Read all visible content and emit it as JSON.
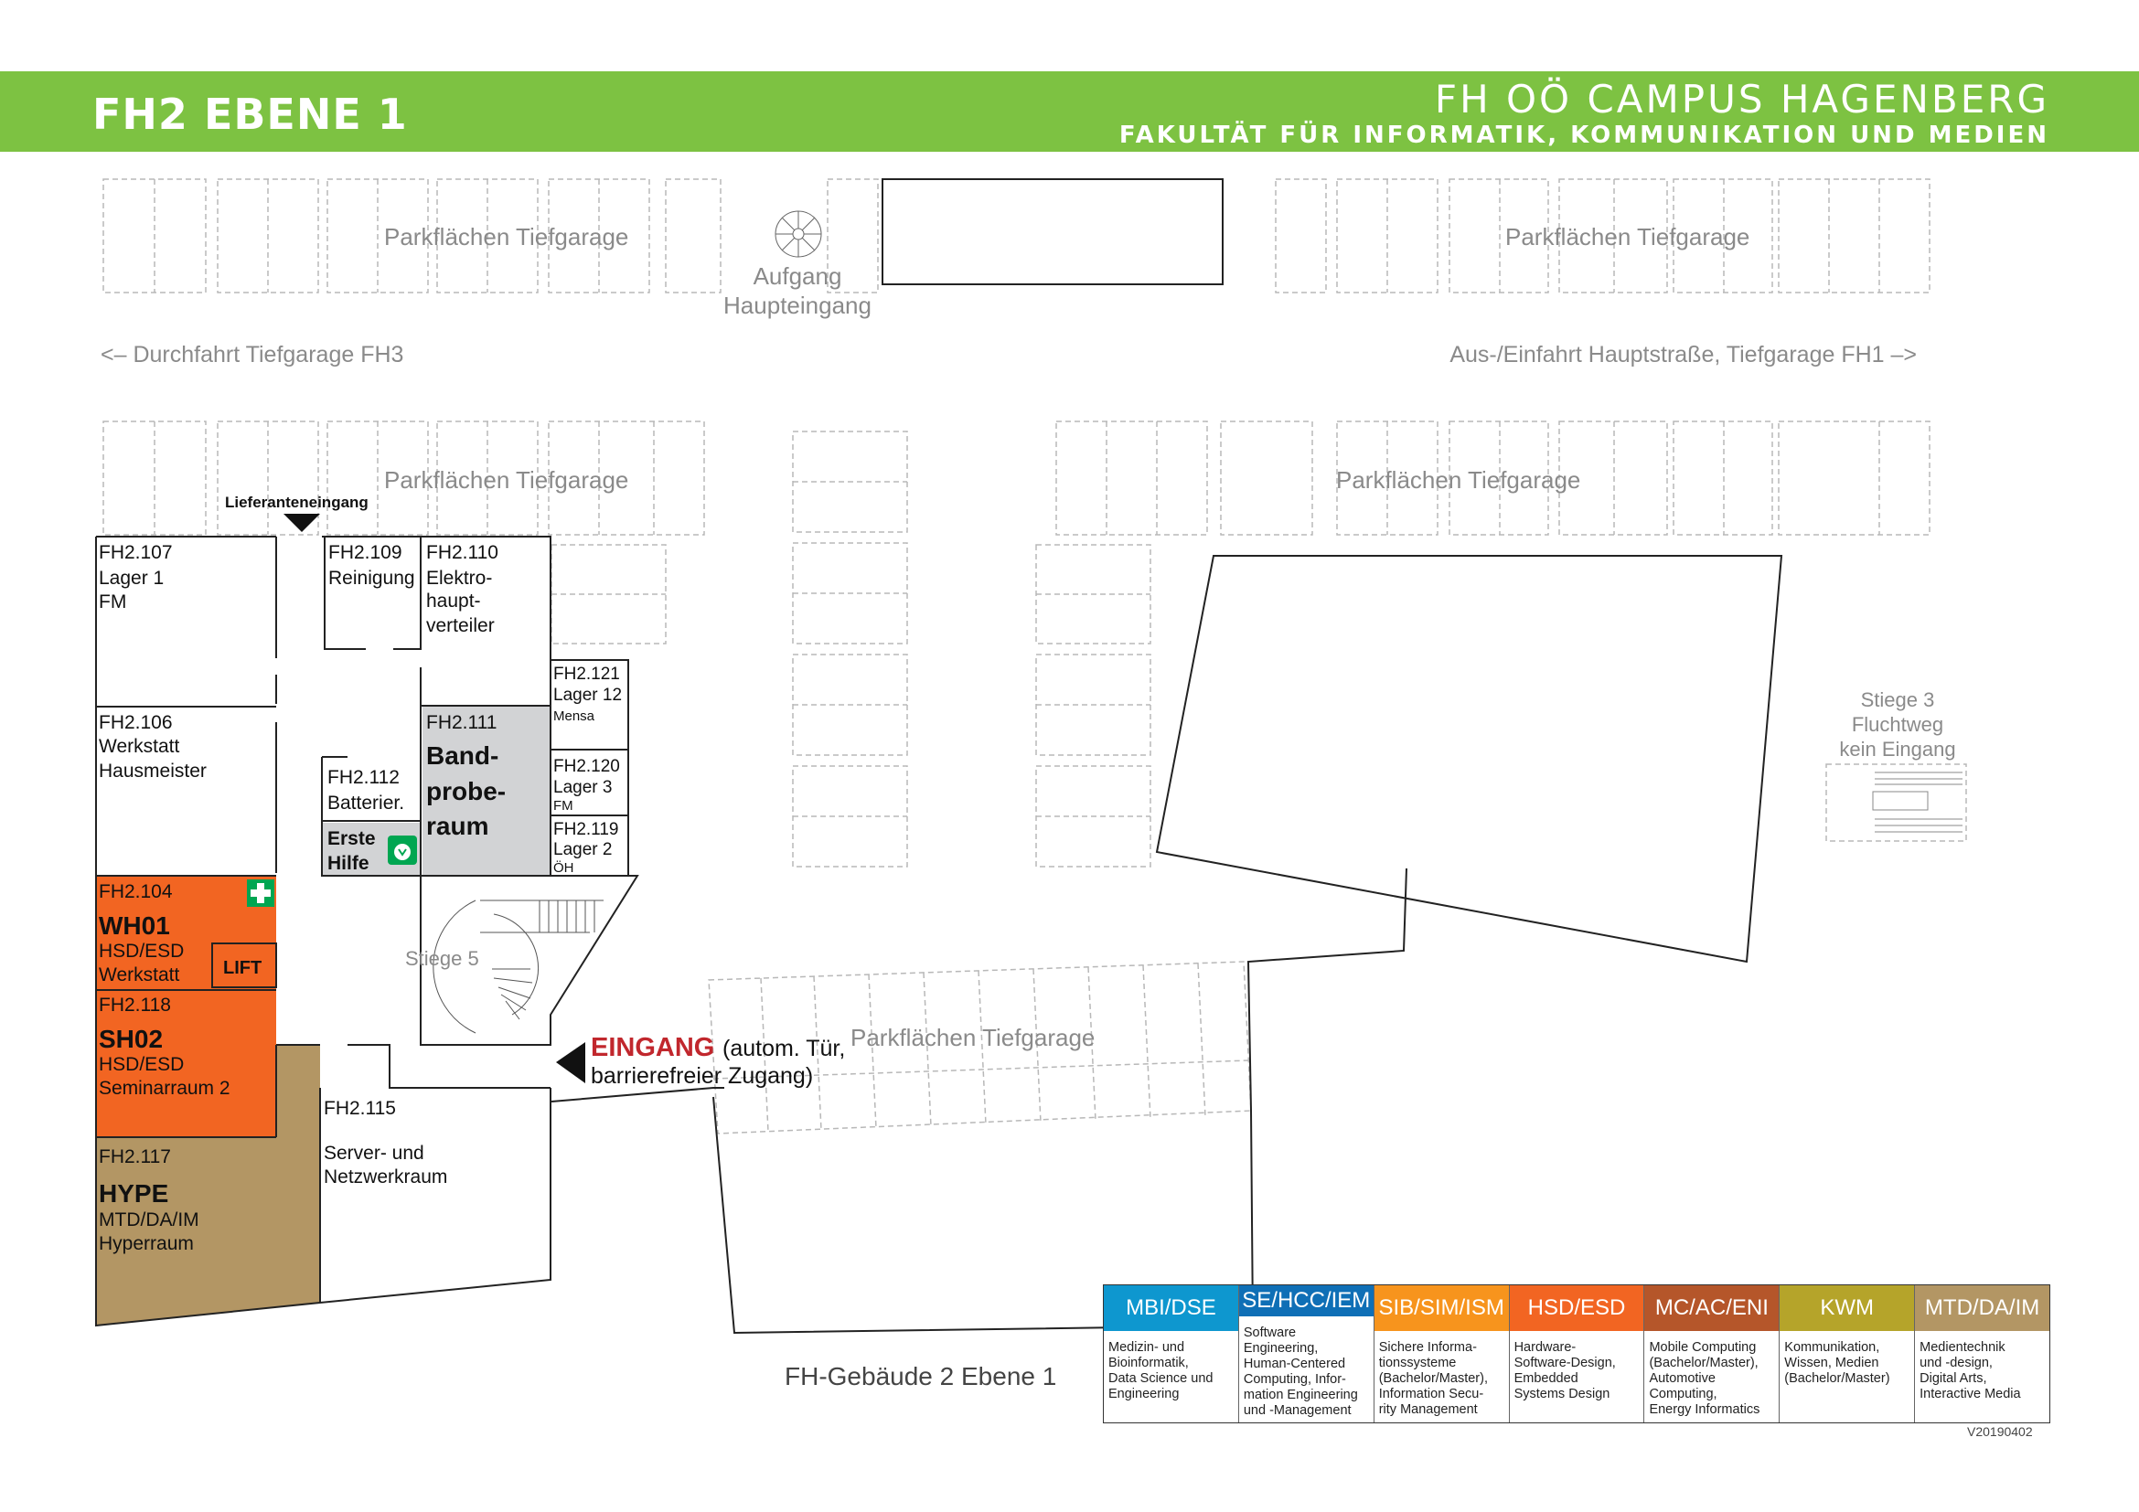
{
  "header": {
    "title": "FH2 EBENE 1",
    "campus": "FH OÖ CAMPUS HAGENBERG",
    "faculty": "FAKULTÄT FÜR INFORMATIK, KOMMUNIKATION UND MEDIEN"
  },
  "colors": {
    "header_green": "#7dc242",
    "orange": "#f26522",
    "tan": "#b39664",
    "gray_room": "#d2d3d5",
    "entrance_red": "#c1272d",
    "first_aid_green": "#00a651"
  },
  "map": {
    "parking": "Parkflächen Tiefgarage",
    "upstairs_line1": "Aufgang",
    "upstairs_line2": "Haupteingang",
    "pass_fh3": "<– Durchfahrt Tiefgarage FH3",
    "exit_main": "Aus-/Einfahrt Hauptstraße, Tiefgarage FH1 –>",
    "delivery": "Lieferanteneingang",
    "stair5": "Stiege 5",
    "stair3_line1": "Stiege 3",
    "stair3_line2": "Fluchtweg",
    "stair3_line3": "kein Eingang",
    "lift": "LIFT",
    "entrance_word": "EINGANG",
    "entrance_rest1": "(autom. Tür,",
    "entrance_rest2": "barrierefreier Zugang)",
    "icons": [
      "first-aid-cross-icon",
      "defibrillator-icon",
      "spiral-staircase-icon",
      "straight-staircase-icon",
      "entrance-arrow-icon",
      "delivery-arrow-icon"
    ]
  },
  "rooms": {
    "r107": {
      "num": "FH2.107",
      "l1": "Lager 1",
      "l2": "FM"
    },
    "r109": {
      "num": "FH2.109",
      "l1": "Reinigung"
    },
    "r110": {
      "num": "FH2.110",
      "l1": "Elektro-",
      "l2": "haupt-",
      "l3": "verteiler"
    },
    "r106": {
      "num": "FH2.106",
      "l1": "Werkstatt",
      "l2": "Hausmeister"
    },
    "r111": {
      "num": "FH2.111",
      "l1": "Band-",
      "l2": "probe-",
      "l3": "raum"
    },
    "r112": {
      "num": "FH2.112",
      "l1": "Batterier."
    },
    "first_aid": {
      "l1": "Erste",
      "l2": "Hilfe"
    },
    "r121": {
      "num": "FH2.121",
      "l1": "Lager 12",
      "l2": "Mensa"
    },
    "r120": {
      "num": "FH2.120",
      "l1": "Lager 3",
      "l2": "FM"
    },
    "r119": {
      "num": "FH2.119",
      "l1": "Lager 2",
      "l2": "ÖH"
    },
    "r104": {
      "num": "FH2.104",
      "l1": "WH01",
      "l2": "HSD/ESD",
      "l3": "Werkstatt"
    },
    "r118": {
      "num": "FH2.118",
      "l1": "SH02",
      "l2": "HSD/ESD",
      "l3": "Seminarraum 2"
    },
    "r117": {
      "num": "FH2.117",
      "l1": "HYPE",
      "l2": "MTD/DA/IM",
      "l3": "Hyperraum"
    },
    "r115": {
      "num": "FH2.115",
      "l1": "Server- und",
      "l2": "Netzwerkraum"
    }
  },
  "legend": [
    {
      "code": "MBI/DSE",
      "color": "#0e97cf",
      "desc": [
        "Medizin- und",
        "Bioinformatik,",
        "Data Science und",
        "Engineering"
      ]
    },
    {
      "code": "SE/HCC/IEM",
      "color": "#0f6fb6",
      "desc": [
        "Software Engineering,",
        "Human-Centered",
        "Computing, Infor-",
        "mation Engineering",
        "und -Management"
      ]
    },
    {
      "code": "SIB/SIM/ISM",
      "color": "#f7941d",
      "desc": [
        "Sichere Informa-",
        "tionssysteme",
        "(Bachelor/Master),",
        "Information Secu-",
        "rity Management"
      ]
    },
    {
      "code": "HSD/ESD",
      "color": "#f26522",
      "desc": [
        "Hardware-",
        "Software-Design,",
        "Embedded",
        "Systems Design"
      ]
    },
    {
      "code": "MC/AC/ENI",
      "color": "#b5562a",
      "desc": [
        "Mobile Computing",
        "(Bachelor/Master),",
        "Automotive",
        "Computing,",
        "Energy Informatics"
      ]
    },
    {
      "code": "KWM",
      "color": "#b5a42a",
      "desc": [
        "Kommunikation,",
        "Wissen, Medien",
        "(Bachelor/Master)"
      ]
    },
    {
      "code": "MTD/DA/IM",
      "color": "#b39664",
      "desc": [
        "Medientechnik",
        "und -design,",
        "Digital Arts,",
        "Interactive Media"
      ]
    }
  ],
  "footer": {
    "building": "FH-Gebäude 2 Ebene 1",
    "version": "V20190402"
  }
}
